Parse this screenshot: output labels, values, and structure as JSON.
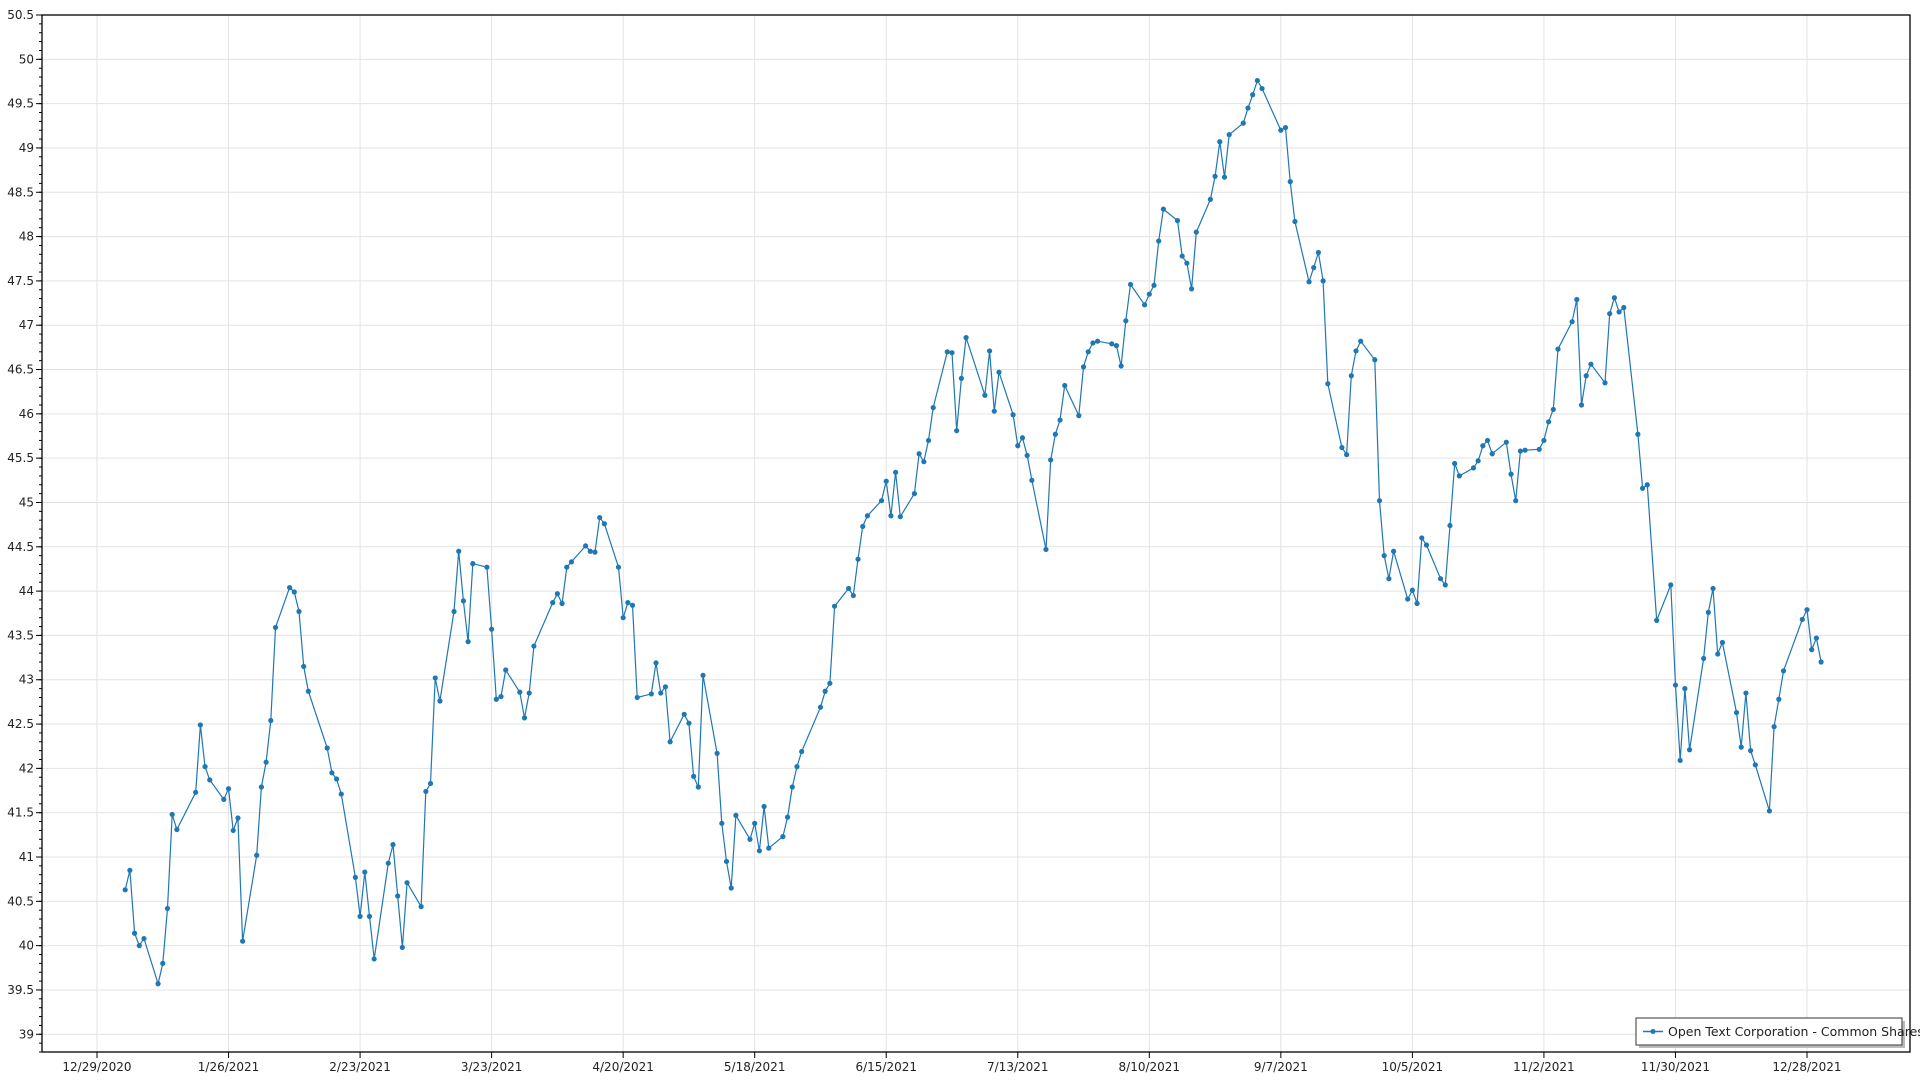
{
  "chart_data": {
    "type": "line",
    "title": "",
    "xlabel": "",
    "ylabel": "",
    "ylim": [
      38.8,
      50.5
    ],
    "y_ticks": [
      "39",
      "39.5",
      "40",
      "40.5",
      "41",
      "41.5",
      "42",
      "42.5",
      "43",
      "43.5",
      "44",
      "44.5",
      "45",
      "45.5",
      "46",
      "46.5",
      "47",
      "47.5",
      "48",
      "48.5",
      "49",
      "49.5",
      "50",
      "50.5"
    ],
    "x_ticks": [
      "12/29/2020",
      "1/26/2021",
      "2/23/2021",
      "3/23/2021",
      "4/20/2021",
      "5/18/2021",
      "6/15/2021",
      "7/13/2021",
      "8/10/2021",
      "9/7/2021",
      "10/5/2021",
      "11/2/2021",
      "11/30/2021",
      "12/28/2021"
    ],
    "grid": true,
    "legend_position": "bottom-right",
    "series": [
      {
        "name": "Open Text Corporation - Common Shares",
        "color": "#1f77b4",
        "marker": "circle",
        "x": [
          "1/4/2021",
          "1/5/2021",
          "1/6/2021",
          "1/7/2021",
          "1/8/2021",
          "1/11/2021",
          "1/12/2021",
          "1/13/2021",
          "1/14/2021",
          "1/15/2021",
          "1/19/2021",
          "1/20/2021",
          "1/21/2021",
          "1/22/2021",
          "1/25/2021",
          "1/26/2021",
          "1/27/2021",
          "1/28/2021",
          "1/29/2021",
          "2/1/2021",
          "2/2/2021",
          "2/3/2021",
          "2/4/2021",
          "2/5/2021",
          "2/8/2021",
          "2/9/2021",
          "2/10/2021",
          "2/11/2021",
          "2/12/2021",
          "2/16/2021",
          "2/17/2021",
          "2/18/2021",
          "2/19/2021",
          "2/22/2021",
          "2/23/2021",
          "2/24/2021",
          "2/25/2021",
          "2/26/2021",
          "3/1/2021",
          "3/2/2021",
          "3/3/2021",
          "3/4/2021",
          "3/5/2021",
          "3/8/2021",
          "3/9/2021",
          "3/10/2021",
          "3/11/2021",
          "3/12/2021",
          "3/15/2021",
          "3/16/2021",
          "3/17/2021",
          "3/18/2021",
          "3/19/2021",
          "3/22/2021",
          "3/23/2021",
          "3/24/2021",
          "3/25/2021",
          "3/26/2021",
          "3/29/2021",
          "3/30/2021",
          "3/31/2021",
          "4/1/2021",
          "4/5/2021",
          "4/6/2021",
          "4/7/2021",
          "4/8/2021",
          "4/9/2021",
          "4/12/2021",
          "4/13/2021",
          "4/14/2021",
          "4/15/2021",
          "4/16/2021",
          "4/19/2021",
          "4/20/2021",
          "4/21/2021",
          "4/22/2021",
          "4/23/2021",
          "4/26/2021",
          "4/27/2021",
          "4/28/2021",
          "4/29/2021",
          "4/30/2021",
          "5/3/2021",
          "5/4/2021",
          "5/5/2021",
          "5/6/2021",
          "5/7/2021",
          "5/10/2021",
          "5/11/2021",
          "5/12/2021",
          "5/13/2021",
          "5/14/2021",
          "5/17/2021",
          "5/18/2021",
          "5/19/2021",
          "5/20/2021",
          "5/21/2021",
          "5/24/2021",
          "5/25/2021",
          "5/26/2021",
          "5/27/2021",
          "5/28/2021",
          "6/1/2021",
          "6/2/2021",
          "6/3/2021",
          "6/4/2021",
          "6/7/2021",
          "6/8/2021",
          "6/9/2021",
          "6/10/2021",
          "6/11/2021",
          "6/14/2021",
          "6/15/2021",
          "6/16/2021",
          "6/17/2021",
          "6/18/2021",
          "6/21/2021",
          "6/22/2021",
          "6/23/2021",
          "6/24/2021",
          "6/25/2021",
          "6/28/2021",
          "6/29/2021",
          "6/30/2021",
          "7/1/2021",
          "7/2/2021",
          "7/6/2021",
          "7/7/2021",
          "7/8/2021",
          "7/9/2021",
          "7/12/2021",
          "7/13/2021",
          "7/14/2021",
          "7/15/2021",
          "7/16/2021",
          "7/19/2021",
          "7/20/2021",
          "7/21/2021",
          "7/22/2021",
          "7/23/2021",
          "7/26/2021",
          "7/27/2021",
          "7/28/2021",
          "7/29/2021",
          "7/30/2021",
          "8/2/2021",
          "8/3/2021",
          "8/4/2021",
          "8/5/2021",
          "8/6/2021",
          "8/9/2021",
          "8/10/2021",
          "8/11/2021",
          "8/12/2021",
          "8/13/2021",
          "8/16/2021",
          "8/17/2021",
          "8/18/2021",
          "8/19/2021",
          "8/20/2021",
          "8/23/2021",
          "8/24/2021",
          "8/25/2021",
          "8/26/2021",
          "8/27/2021",
          "8/30/2021",
          "8/31/2021",
          "9/1/2021",
          "9/2/2021",
          "9/3/2021",
          "9/7/2021",
          "9/8/2021",
          "9/9/2021",
          "9/10/2021",
          "9/13/2021",
          "9/14/2021",
          "9/15/2021",
          "9/16/2021",
          "9/17/2021",
          "9/20/2021",
          "9/21/2021",
          "9/22/2021",
          "9/23/2021",
          "9/24/2021",
          "9/27/2021",
          "9/28/2021",
          "9/29/2021",
          "9/30/2021",
          "10/1/2021",
          "10/4/2021",
          "10/5/2021",
          "10/6/2021",
          "10/7/2021",
          "10/8/2021",
          "10/11/2021",
          "10/12/2021",
          "10/13/2021",
          "10/14/2021",
          "10/15/2021",
          "10/18/2021",
          "10/19/2021",
          "10/20/2021",
          "10/21/2021",
          "10/22/2021",
          "10/25/2021",
          "10/26/2021",
          "10/27/2021",
          "10/28/2021",
          "10/29/2021",
          "11/1/2021",
          "11/2/2021",
          "11/3/2021",
          "11/4/2021",
          "11/5/2021",
          "11/8/2021",
          "11/9/2021",
          "11/10/2021",
          "11/11/2021",
          "11/12/2021",
          "11/15/2021",
          "11/16/2021",
          "11/17/2021",
          "11/18/2021",
          "11/19/2021",
          "11/22/2021",
          "11/23/2021",
          "11/24/2021",
          "11/26/2021",
          "11/29/2021",
          "11/30/2021",
          "12/1/2021",
          "12/2/2021",
          "12/3/2021",
          "12/6/2021",
          "12/7/2021",
          "12/8/2021",
          "12/9/2021",
          "12/10/2021",
          "12/13/2021",
          "12/14/2021",
          "12/15/2021",
          "12/16/2021",
          "12/17/2021",
          "12/20/2021",
          "12/21/2021",
          "12/22/2021",
          "12/23/2021",
          "12/27/2021",
          "12/28/2021",
          "12/29/2021",
          "12/30/2021",
          "12/31/2021"
        ],
        "y": [
          40.63,
          40.85,
          40.14,
          40.0,
          40.08,
          39.57,
          39.8,
          40.42,
          41.48,
          41.31,
          41.73,
          42.49,
          42.02,
          41.87,
          41.65,
          41.77,
          41.3,
          41.44,
          40.05,
          41.02,
          41.79,
          42.07,
          42.54,
          43.59,
          44.04,
          43.99,
          43.77,
          43.15,
          42.87,
          42.23,
          41.95,
          41.88,
          41.71,
          40.77,
          40.33,
          40.83,
          40.33,
          39.85,
          40.93,
          41.14,
          40.56,
          39.98,
          40.71,
          40.44,
          41.74,
          41.83,
          43.02,
          42.76,
          43.77,
          44.45,
          43.89,
          43.43,
          44.31,
          44.27,
          43.57,
          42.78,
          42.81,
          43.11,
          42.86,
          42.57,
          42.85,
          43.38,
          43.87,
          43.97,
          43.86,
          44.27,
          44.33,
          44.51,
          44.45,
          44.44,
          44.83,
          44.76,
          44.27,
          43.7,
          43.87,
          43.84,
          42.8,
          42.84,
          43.19,
          42.85,
          42.92,
          42.3,
          42.61,
          42.51,
          41.91,
          41.79,
          43.05,
          42.17,
          41.38,
          40.95,
          40.65,
          41.47,
          41.2,
          41.38,
          41.07,
          41.57,
          41.1,
          41.23,
          41.45,
          41.79,
          42.02,
          42.19,
          42.69,
          42.87,
          42.96,
          43.83,
          44.03,
          43.95,
          44.36,
          44.73,
          44.85,
          45.02,
          45.24,
          44.85,
          45.34,
          44.84,
          45.1,
          45.55,
          45.46,
          45.7,
          46.07,
          46.7,
          46.69,
          45.81,
          46.4,
          46.86,
          46.21,
          46.71,
          46.03,
          46.47,
          45.99,
          45.64,
          45.73,
          45.53,
          45.25,
          44.47,
          45.48,
          45.77,
          45.93,
          46.32,
          45.98,
          46.53,
          46.7,
          46.8,
          46.82,
          46.79,
          46.77,
          46.54,
          47.05,
          47.46,
          47.23,
          47.35,
          47.45,
          47.95,
          48.31,
          48.18,
          47.78,
          47.7,
          47.41,
          48.05,
          48.42,
          48.68,
          49.07,
          48.67,
          49.15,
          49.28,
          49.45,
          49.6,
          49.76,
          49.67,
          49.2,
          49.23,
          48.62,
          48.17,
          47.49,
          47.65,
          47.82,
          47.5,
          46.34,
          45.62,
          45.54,
          46.43,
          46.71,
          46.82,
          46.61,
          45.02,
          44.4,
          44.14,
          44.45,
          43.91,
          44.01,
          43.86,
          44.6,
          44.52,
          44.14,
          44.07,
          44.74,
          45.44,
          45.3,
          45.39,
          45.47,
          45.64,
          45.7,
          45.55,
          45.68,
          45.32,
          45.02,
          45.58,
          45.59,
          45.6,
          45.7,
          45.91,
          46.05,
          46.73,
          47.04,
          47.29,
          46.1,
          46.43,
          46.56,
          46.35,
          47.13,
          47.31,
          47.15,
          47.2,
          45.77,
          45.16,
          45.2,
          43.67,
          44.07,
          42.94,
          42.09,
          42.9,
          42.21,
          43.24,
          43.76,
          44.03,
          43.29,
          43.42,
          42.63,
          42.24,
          42.85,
          42.2,
          42.04,
          41.52,
          42.47,
          42.78,
          43.1,
          43.68,
          43.79,
          43.34,
          43.47,
          43.2
        ]
      }
    ]
  }
}
